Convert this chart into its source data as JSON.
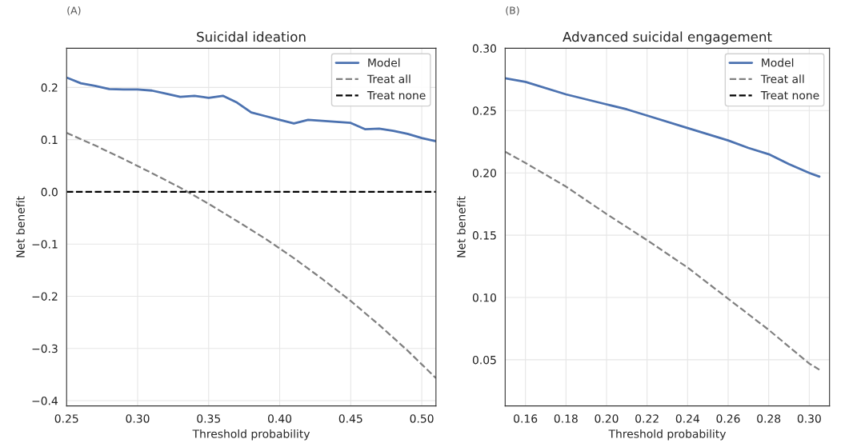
{
  "chart_data": [
    {
      "type": "line",
      "title": "Suicidal ideation",
      "xlabel": "Threshold probability",
      "ylabel": "Net benefit",
      "annotations": [
        "(A)"
      ],
      "xlim": [
        0.25,
        0.51
      ],
      "xticks": [
        {
          "value": 0.25,
          "label": "0.25"
        },
        {
          "value": 0.3,
          "label": "0.30"
        },
        {
          "value": 0.35,
          "label": "0.35"
        },
        {
          "value": 0.4,
          "label": "0.40"
        },
        {
          "value": 0.45,
          "label": "0.45"
        },
        {
          "value": 0.5,
          "label": "0.50"
        }
      ],
      "ylim": [
        -0.41,
        0.275
      ],
      "yticks": [
        {
          "value": -0.4,
          "label": "−0.4"
        },
        {
          "value": -0.3,
          "label": "−0.3"
        },
        {
          "value": -0.2,
          "label": "−0.2"
        },
        {
          "value": -0.1,
          "label": "−0.1"
        },
        {
          "value": 0,
          "label": "0.0"
        },
        0.1,
        0.2
      ],
      "grid": true,
      "legend": "top right",
      "series": [
        {
          "name": "Model",
          "color": "#4c72b0",
          "line_style": "solid",
          "x": [
            0.25,
            0.26,
            0.27,
            0.28,
            0.29,
            0.3,
            0.31,
            0.32,
            0.33,
            0.34,
            0.35,
            0.36,
            0.37,
            0.38,
            0.39,
            0.4,
            0.41,
            0.42,
            0.43,
            0.44,
            0.45,
            0.46,
            0.47,
            0.48,
            0.49,
            0.5,
            0.51
          ],
          "values": [
            0.219,
            0.208,
            0.203,
            0.197,
            0.196,
            0.196,
            0.194,
            0.188,
            0.182,
            0.184,
            0.18,
            0.184,
            0.171,
            0.152,
            0.145,
            0.138,
            0.131,
            0.138,
            0.136,
            0.134,
            0.132,
            0.12,
            0.121,
            0.117,
            0.111,
            0.103,
            0.097
          ]
        },
        {
          "name": "Treat all",
          "color": "#808080",
          "line_style": "dashed",
          "x": [
            0.25,
            0.27,
            0.29,
            0.31,
            0.33,
            0.35,
            0.37,
            0.39,
            0.41,
            0.43,
            0.45,
            0.47,
            0.49,
            0.51
          ],
          "values": [
            0.113,
            0.089,
            0.063,
            0.036,
            0.008,
            -0.023,
            -0.056,
            -0.09,
            -0.127,
            -0.167,
            -0.209,
            -0.255,
            -0.304,
            -0.357
          ]
        },
        {
          "name": "Treat none",
          "color": "#000000",
          "line_style": "dashed",
          "x": [
            0.25,
            0.51
          ],
          "values": [
            0.0,
            0.0
          ]
        }
      ]
    },
    {
      "type": "line",
      "title": "Advanced suicidal engagement",
      "xlabel": "Threshold probability",
      "ylabel": "Net benefit",
      "annotations": [
        "(B)"
      ],
      "xlim": [
        0.15,
        0.31
      ],
      "xticks": [
        {
          "value": 0.16,
          "label": "0.16"
        },
        {
          "value": 0.18,
          "label": "0.18"
        },
        {
          "value": 0.2,
          "label": "0.20"
        },
        {
          "value": 0.22,
          "label": "0.22"
        },
        {
          "value": 0.24,
          "label": "0.24"
        },
        {
          "value": 0.26,
          "label": "0.26"
        },
        {
          "value": 0.28,
          "label": "0.28"
        },
        {
          "value": 0.3,
          "label": "0.30"
        }
      ],
      "ylim": [
        0.013,
        0.3
      ],
      "yticks": [
        0.05,
        {
          "value": 0.1,
          "label": "0.10"
        },
        0.15,
        {
          "value": 0.2,
          "label": "0.20"
        },
        0.25,
        {
          "value": 0.3,
          "label": "0.30"
        }
      ],
      "grid": true,
      "legend": "top right",
      "series": [
        {
          "name": "Model",
          "color": "#4c72b0",
          "line_style": "solid",
          "x": [
            0.15,
            0.16,
            0.18,
            0.2,
            0.21,
            0.22,
            0.24,
            0.25,
            0.26,
            0.27,
            0.28,
            0.29,
            0.3,
            0.305
          ],
          "values": [
            0.276,
            0.273,
            0.263,
            0.255,
            0.251,
            0.246,
            0.236,
            0.231,
            0.226,
            0.22,
            0.215,
            0.207,
            0.2,
            0.197
          ]
        },
        {
          "name": "Treat all",
          "color": "#808080",
          "line_style": "dashed",
          "x": [
            0.15,
            0.16,
            0.18,
            0.2,
            0.22,
            0.24,
            0.26,
            0.28,
            0.3,
            0.305
          ],
          "values": [
            0.217,
            0.208,
            0.189,
            0.167,
            0.146,
            0.124,
            0.099,
            0.074,
            0.047,
            0.042
          ]
        },
        {
          "name": "Treat none",
          "color": "#000000",
          "line_style": "dashed"
        }
      ]
    }
  ]
}
